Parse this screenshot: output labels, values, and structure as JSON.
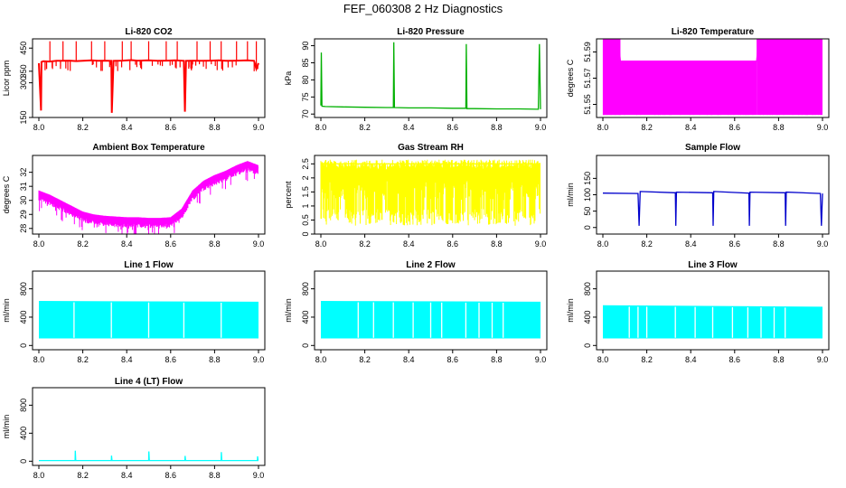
{
  "title": "FEF_060308  2 Hz Diagnostics",
  "chart_data": [
    {
      "type": "line",
      "title": "Li-820 CO2",
      "ylabel": "Licor ppm",
      "color": "#ff0000",
      "xlim": [
        8.0,
        9.0
      ],
      "ylim": [
        150,
        490
      ],
      "xticks": [
        "8.0",
        "8.2",
        "8.4",
        "8.6",
        "8.8",
        "9.0"
      ],
      "yticks": [
        150,
        300,
        350,
        450
      ],
      "x": [
        8.0,
        8.01,
        8.012,
        8.02,
        8.05,
        8.08,
        8.1,
        8.14,
        8.17,
        8.2,
        8.24,
        8.27,
        8.3,
        8.33,
        8.332,
        8.34,
        8.38,
        8.42,
        8.45,
        8.5,
        8.54,
        8.58,
        8.62,
        8.66,
        8.665,
        8.67,
        8.7,
        8.74,
        8.78,
        8.82,
        8.85,
        8.9,
        8.95,
        8.98,
        8.99,
        9.0
      ],
      "y": [
        385,
        180,
        390,
        393,
        392,
        395,
        395,
        396,
        394,
        395,
        397,
        395,
        396,
        395,
        170,
        395,
        396,
        398,
        396,
        397,
        395,
        396,
        397,
        395,
        175,
        395,
        396,
        395,
        396,
        397,
        395,
        396,
        397,
        395,
        360,
        385
      ]
    },
    {
      "type": "line",
      "title": "Li-820 Pressure",
      "ylabel": "kPa",
      "color": "#00b000",
      "xlim": [
        8.0,
        9.0
      ],
      "ylim": [
        69,
        92
      ],
      "xticks": [
        "8.0",
        "8.2",
        "8.4",
        "8.6",
        "8.8",
        "9.0"
      ],
      "yticks": [
        70,
        75,
        80,
        85,
        90
      ],
      "x": [
        8.0,
        8.002,
        8.005,
        8.02,
        8.1,
        8.2,
        8.3,
        8.33,
        8.332,
        8.335,
        8.4,
        8.5,
        8.6,
        8.66,
        8.662,
        8.665,
        8.7,
        8.8,
        8.9,
        8.99,
        8.995,
        9.0
      ],
      "y": [
        72.5,
        88,
        72.3,
        72.2,
        72.1,
        72.0,
        71.9,
        71.9,
        91,
        71.9,
        71.8,
        71.8,
        71.7,
        71.7,
        90.5,
        71.6,
        71.6,
        71.5,
        71.5,
        71.4,
        90.5,
        71.4
      ]
    },
    {
      "type": "line",
      "title": "Li-820 Temperature",
      "ylabel": "degrees C",
      "color": "#ff00ff",
      "xlim": [
        8.0,
        9.0
      ],
      "ylim": [
        51.54,
        51.6
      ],
      "xticks": [
        "8.0",
        "8.2",
        "8.4",
        "8.6",
        "8.8",
        "9.0"
      ],
      "yticks": [
        51.55,
        51.57,
        51.59
      ],
      "x": [
        8.0,
        8.07,
        8.08,
        8.7,
        8.71,
        9.0
      ],
      "y": [
        51.6,
        51.6,
        51.583,
        51.583,
        51.6,
        51.6
      ]
    },
    {
      "type": "line",
      "title": "Ambient Box Temperature",
      "ylabel": "degrees C",
      "color": "#ff00ff",
      "xlim": [
        8.0,
        9.0
      ],
      "ylim": [
        27.6,
        33.2
      ],
      "xticks": [
        "8.0",
        "8.2",
        "8.4",
        "8.6",
        "8.8",
        "9.0"
      ],
      "yticks": [
        28,
        29,
        30,
        31,
        32
      ],
      "x": [
        8.0,
        8.05,
        8.1,
        8.15,
        8.2,
        8.25,
        8.3,
        8.35,
        8.4,
        8.45,
        8.5,
        8.55,
        8.6,
        8.65,
        8.7,
        8.75,
        8.8,
        8.85,
        8.9,
        8.95,
        9.0
      ],
      "y": [
        30.5,
        30.2,
        29.8,
        29.4,
        29.0,
        28.8,
        28.7,
        28.65,
        28.6,
        28.6,
        28.55,
        28.55,
        28.6,
        29.2,
        30.5,
        31.2,
        31.6,
        31.9,
        32.3,
        32.6,
        32.3
      ]
    },
    {
      "type": "line",
      "title": "Gas Stream RH",
      "ylabel": "percent",
      "color": "#ffff00",
      "xlim": [
        8.0,
        9.0
      ],
      "ylim": [
        0,
        2.8
      ],
      "xticks": [
        "8.0",
        "8.2",
        "8.4",
        "8.6",
        "8.8",
        "9.0"
      ],
      "yticks": [
        0.0,
        0.5,
        1.0,
        1.5,
        2.0,
        2.5
      ],
      "x": [
        8.0,
        9.0
      ],
      "y": [
        2.5,
        2.5
      ]
    },
    {
      "type": "line",
      "title": "Sample Flow",
      "ylabel": "ml/min",
      "color": "#0000cc",
      "xlim": [
        8.0,
        9.0
      ],
      "ylim": [
        -20,
        220
      ],
      "xticks": [
        "8.0",
        "8.2",
        "8.4",
        "8.6",
        "8.8",
        "9.0"
      ],
      "yticks": [
        0,
        50,
        100,
        150
      ],
      "x": [
        8.0,
        8.16,
        8.165,
        8.17,
        8.33,
        8.332,
        8.335,
        8.5,
        8.502,
        8.505,
        8.665,
        8.667,
        8.67,
        8.83,
        8.832,
        8.835,
        8.99,
        8.995,
        9.0
      ],
      "y": [
        105,
        104,
        5,
        110,
        106,
        5,
        108,
        106,
        5,
        110,
        105,
        5,
        108,
        106,
        5,
        108,
        104,
        5,
        104
      ]
    },
    {
      "type": "line",
      "title": "Line 1 Flow",
      "ylabel": "ml/min",
      "color": "#00ffff",
      "xlim": [
        8.0,
        9.0
      ],
      "ylim": [
        -60,
        1050
      ],
      "xticks": [
        "8.0",
        "8.2",
        "8.4",
        "8.6",
        "8.8",
        "9.0"
      ],
      "yticks": [
        0,
        400,
        800
      ],
      "x": [
        8.0,
        9.0
      ],
      "y": [
        620,
        610
      ]
    },
    {
      "type": "line",
      "title": "Line 2 Flow",
      "ylabel": "ml/min",
      "color": "#00ffff",
      "xlim": [
        8.0,
        9.0
      ],
      "ylim": [
        -60,
        1050
      ],
      "xticks": [
        "8.0",
        "8.2",
        "8.4",
        "8.6",
        "8.8",
        "9.0"
      ],
      "yticks": [
        0,
        400,
        800
      ],
      "x": [
        8.0,
        9.0
      ],
      "y": [
        620,
        610
      ]
    },
    {
      "type": "line",
      "title": "Line 3 Flow",
      "ylabel": "ml/min",
      "color": "#00ffff",
      "xlim": [
        8.0,
        9.0
      ],
      "ylim": [
        -60,
        1050
      ],
      "xticks": [
        "8.0",
        "8.2",
        "8.4",
        "8.6",
        "8.8",
        "9.0"
      ],
      "yticks": [
        0,
        400,
        800
      ],
      "x": [
        8.0,
        9.0
      ],
      "y": [
        560,
        540
      ]
    },
    {
      "type": "line",
      "title": "Line 4 (LT) Flow",
      "ylabel": "ml/min",
      "color": "#00ffff",
      "xlim": [
        8.0,
        9.0
      ],
      "ylim": [
        -60,
        1050
      ],
      "xticks": [
        "8.0",
        "8.2",
        "8.4",
        "8.6",
        "8.8",
        "9.0"
      ],
      "yticks": [
        0,
        400,
        800
      ],
      "x": [
        8.0,
        8.165,
        8.166,
        8.168,
        8.33,
        8.331,
        8.333,
        8.5,
        8.501,
        8.503,
        8.665,
        8.666,
        8.668,
        8.83,
        8.831,
        8.833,
        8.995,
        8.996,
        8.998,
        9.0
      ],
      "y": [
        10,
        10,
        150,
        10,
        10,
        80,
        10,
        10,
        140,
        10,
        10,
        75,
        10,
        10,
        130,
        10,
        10,
        70,
        10,
        10
      ]
    }
  ]
}
